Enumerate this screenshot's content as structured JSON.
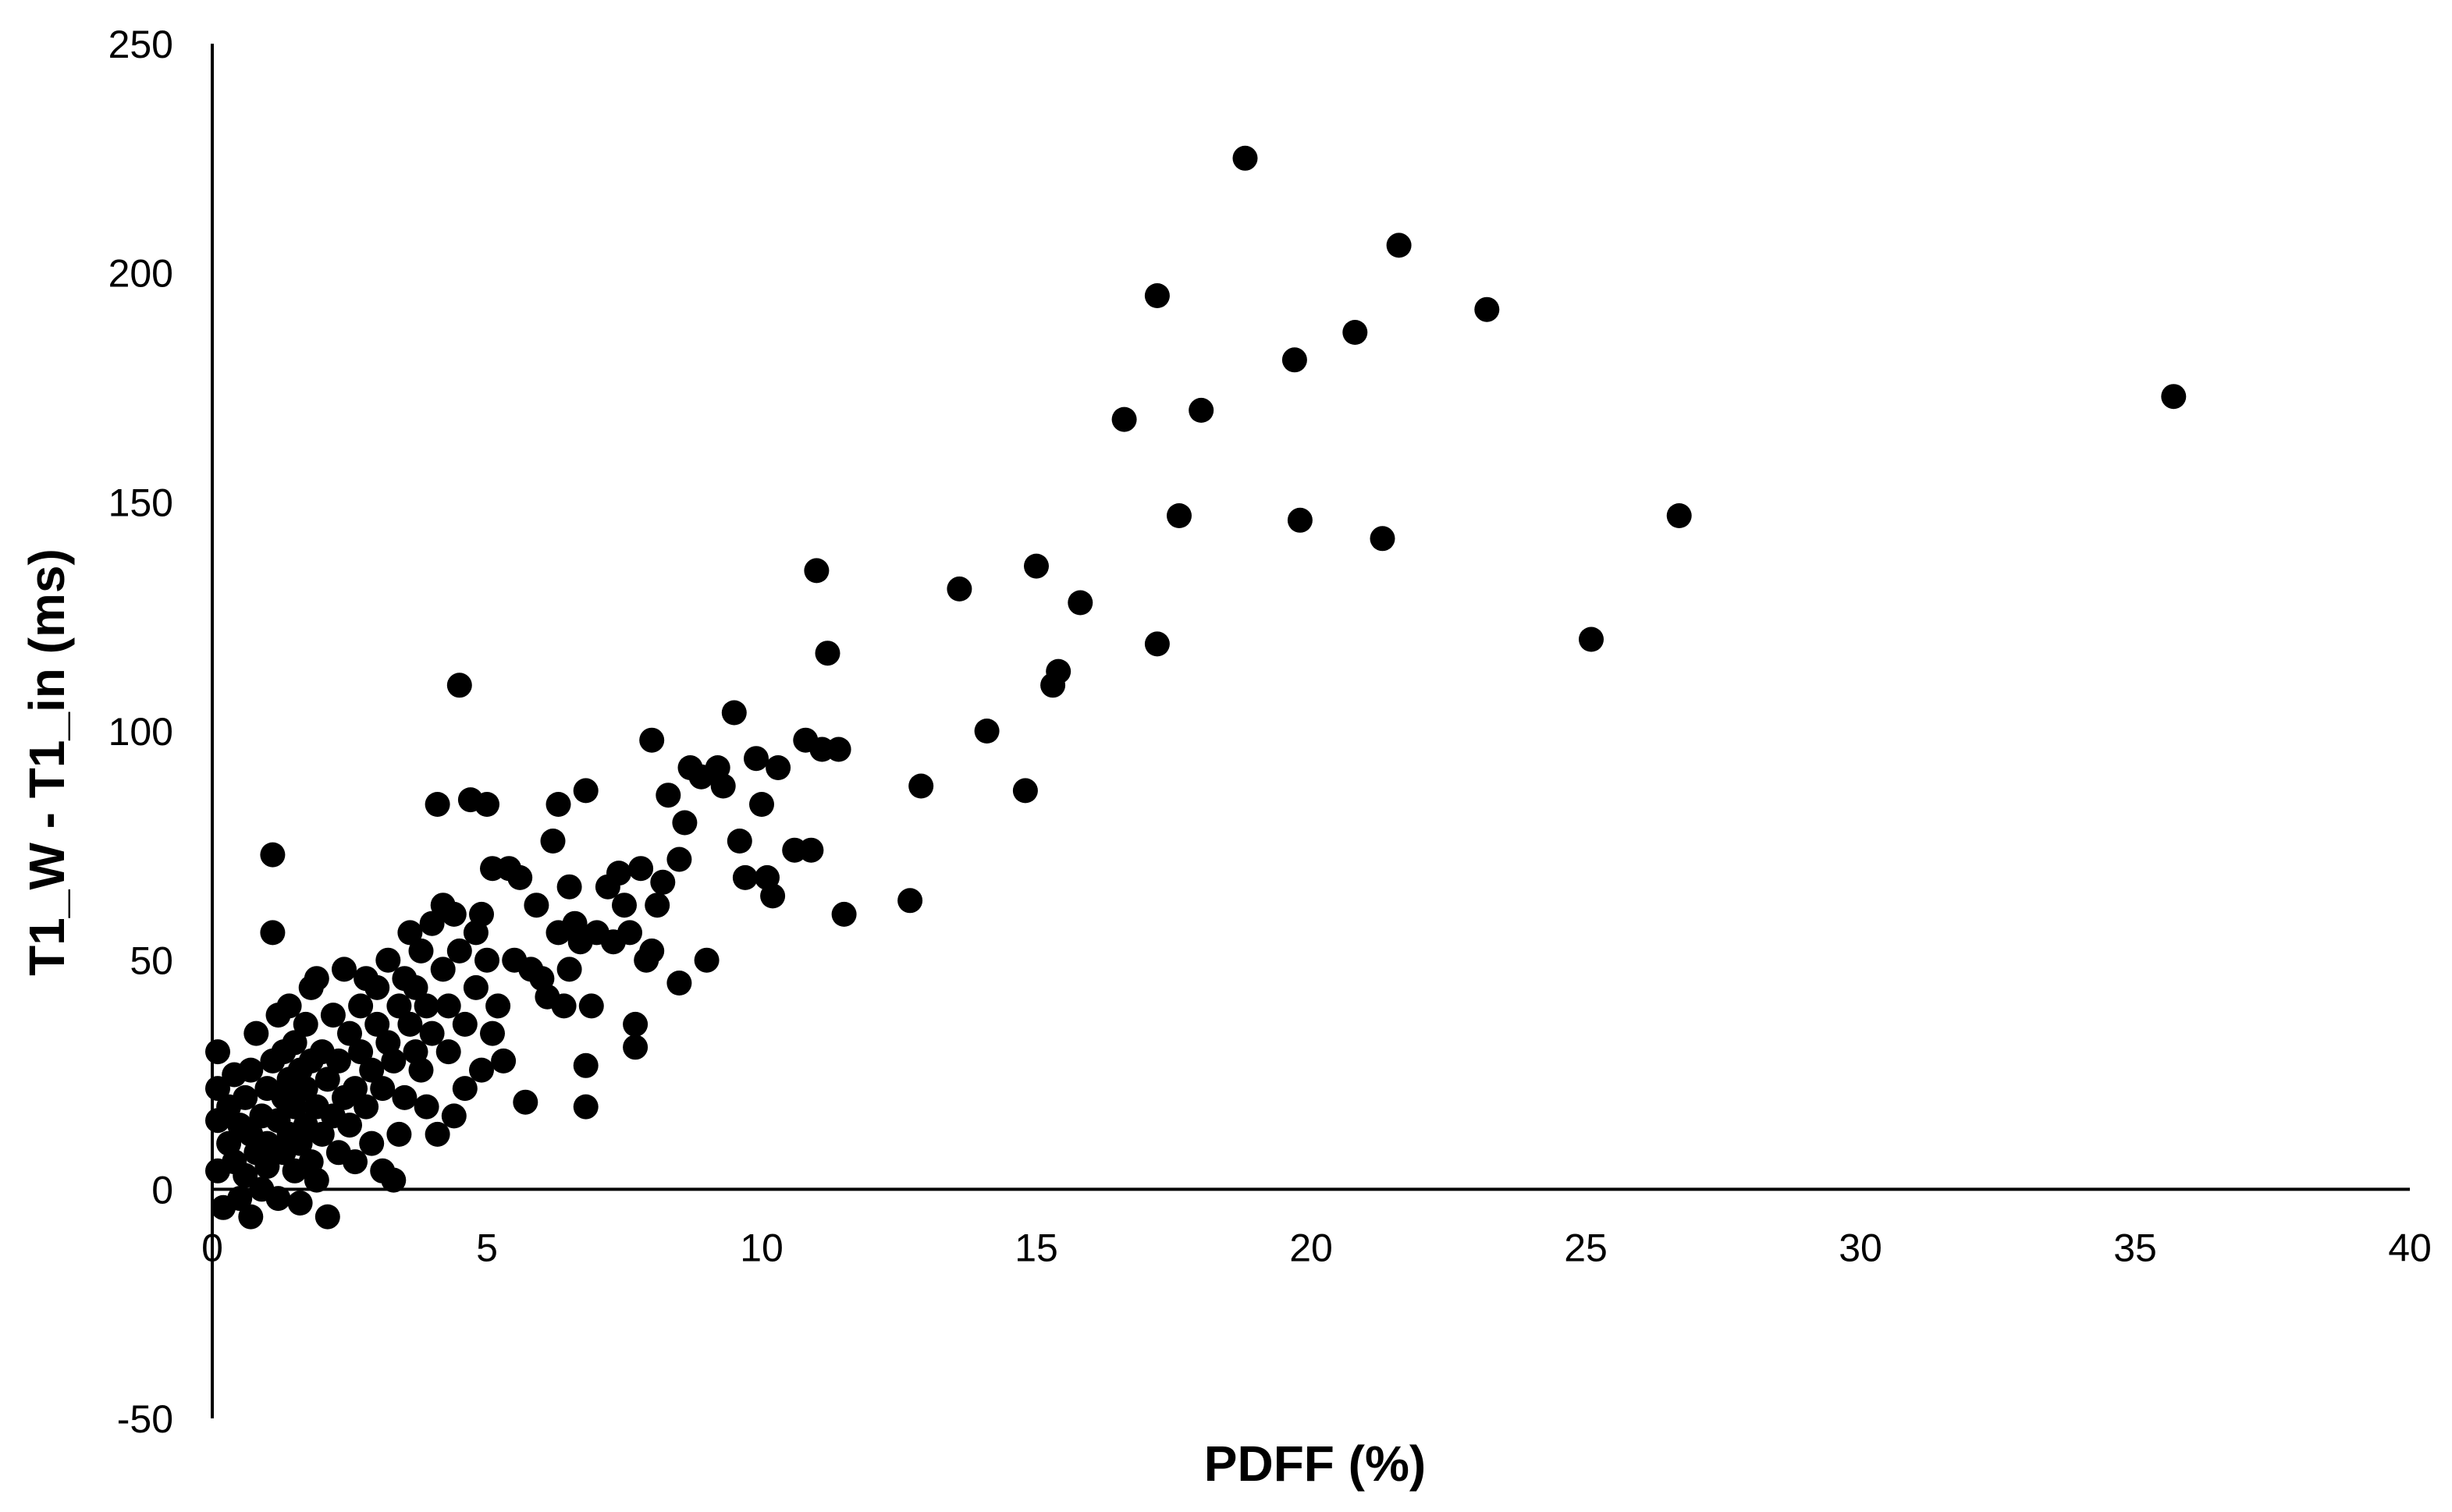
{
  "chart_data": {
    "type": "scatter",
    "title": "",
    "xlabel": "PDFF (%)",
    "ylabel": "T1_W - T1_in (ms)",
    "xlim": [
      0,
      40
    ],
    "ylim": [
      -50,
      250
    ],
    "x_ticks": [
      "0",
      "5",
      "10",
      "15",
      "20",
      "25",
      "30",
      "35",
      "40"
    ],
    "y_ticks": [
      "250",
      "200",
      "150",
      "100",
      "50",
      "0",
      "-50"
    ],
    "grid": false,
    "legend": "none",
    "marker_color": "#000000",
    "series": [
      {
        "points": [
          [
            0.1,
            30
          ],
          [
            0.1,
            22
          ],
          [
            0.1,
            15
          ],
          [
            0.1,
            4
          ],
          [
            0.2,
            -4
          ],
          [
            0.3,
            10
          ],
          [
            0.3,
            18
          ],
          [
            0.4,
            6
          ],
          [
            0.4,
            25
          ],
          [
            0.5,
            -2
          ],
          [
            0.5,
            14
          ],
          [
            0.6,
            20
          ],
          [
            0.6,
            3
          ],
          [
            0.7,
            12
          ],
          [
            0.7,
            26
          ],
          [
            0.7,
            -6
          ],
          [
            0.8,
            8
          ],
          [
            0.8,
            34
          ],
          [
            0.9,
            16
          ],
          [
            0.9,
            0
          ],
          [
            1.0,
            22
          ],
          [
            1.0,
            10
          ],
          [
            1.0,
            5
          ],
          [
            1.1,
            28
          ],
          [
            1.1,
            73
          ],
          [
            1.1,
            56
          ],
          [
            1.2,
            15
          ],
          [
            1.2,
            -2
          ],
          [
            1.2,
            38
          ],
          [
            1.3,
            20
          ],
          [
            1.3,
            8
          ],
          [
            1.3,
            30
          ],
          [
            1.4,
            12
          ],
          [
            1.4,
            24
          ],
          [
            1.4,
            40
          ],
          [
            1.5,
            4
          ],
          [
            1.5,
            18
          ],
          [
            1.5,
            32
          ],
          [
            1.6,
            10
          ],
          [
            1.6,
            26
          ],
          [
            1.6,
            -3
          ],
          [
            1.7,
            14
          ],
          [
            1.7,
            36
          ],
          [
            1.7,
            22
          ],
          [
            1.8,
            6
          ],
          [
            1.8,
            44
          ],
          [
            1.8,
            28
          ],
          [
            1.9,
            18
          ],
          [
            1.9,
            2
          ],
          [
            1.9,
            46
          ],
          [
            2.0,
            12
          ],
          [
            2.0,
            30
          ],
          [
            2.1,
            24
          ],
          [
            2.1,
            -6
          ],
          [
            2.2,
            16
          ],
          [
            2.2,
            38
          ],
          [
            2.3,
            8
          ],
          [
            2.3,
            28
          ],
          [
            2.4,
            20
          ],
          [
            2.4,
            48
          ],
          [
            2.5,
            14
          ],
          [
            2.5,
            34
          ],
          [
            2.6,
            22
          ],
          [
            2.6,
            6
          ],
          [
            2.7,
            40
          ],
          [
            2.7,
            30
          ],
          [
            2.8,
            18
          ],
          [
            2.8,
            46
          ],
          [
            2.9,
            26
          ],
          [
            2.9,
            10
          ],
          [
            3.0,
            36
          ],
          [
            3.0,
            44
          ],
          [
            3.1,
            22
          ],
          [
            3.1,
            4
          ],
          [
            3.2,
            32
          ],
          [
            3.2,
            50
          ],
          [
            3.3,
            2
          ],
          [
            3.3,
            28
          ],
          [
            3.4,
            40
          ],
          [
            3.4,
            12
          ],
          [
            3.5,
            46
          ],
          [
            3.5,
            20
          ],
          [
            3.6,
            36
          ],
          [
            3.6,
            56
          ],
          [
            3.7,
            30
          ],
          [
            3.7,
            44
          ],
          [
            3.8,
            26
          ],
          [
            3.8,
            52
          ],
          [
            3.9,
            18
          ],
          [
            3.9,
            40
          ],
          [
            4.0,
            58
          ],
          [
            4.0,
            34
          ],
          [
            4.1,
            84
          ],
          [
            4.1,
            12
          ],
          [
            4.2,
            48
          ],
          [
            4.2,
            62
          ],
          [
            4.3,
            30
          ],
          [
            4.3,
            40
          ],
          [
            4.4,
            60
          ],
          [
            4.4,
            16
          ],
          [
            4.5,
            110
          ],
          [
            4.5,
            52
          ],
          [
            4.6,
            36
          ],
          [
            4.6,
            22
          ],
          [
            4.7,
            85
          ],
          [
            4.8,
            56
          ],
          [
            4.8,
            44
          ],
          [
            4.9,
            26
          ],
          [
            4.9,
            60
          ],
          [
            5.0,
            50
          ],
          [
            5.0,
            84
          ],
          [
            5.1,
            70
          ],
          [
            5.1,
            34
          ],
          [
            5.2,
            40
          ],
          [
            5.3,
            28
          ],
          [
            5.4,
            70
          ],
          [
            5.5,
            50
          ],
          [
            5.6,
            68
          ],
          [
            5.7,
            19
          ],
          [
            5.8,
            48
          ],
          [
            5.9,
            62
          ],
          [
            6.0,
            46
          ],
          [
            6.1,
            42
          ],
          [
            6.2,
            76
          ],
          [
            6.3,
            84
          ],
          [
            6.3,
            56
          ],
          [
            6.4,
            40
          ],
          [
            6.5,
            48
          ],
          [
            6.5,
            66
          ],
          [
            6.6,
            58
          ],
          [
            6.7,
            54
          ],
          [
            6.8,
            87
          ],
          [
            6.8,
            27
          ],
          [
            6.8,
            18
          ],
          [
            6.9,
            40
          ],
          [
            7.0,
            56
          ],
          [
            7.2,
            66
          ],
          [
            7.3,
            54
          ],
          [
            7.4,
            69
          ],
          [
            7.5,
            62
          ],
          [
            7.6,
            56
          ],
          [
            7.7,
            36
          ],
          [
            7.7,
            31
          ],
          [
            7.8,
            70
          ],
          [
            7.9,
            50
          ],
          [
            8.0,
            98
          ],
          [
            8.0,
            52
          ],
          [
            8.1,
            62
          ],
          [
            8.2,
            67
          ],
          [
            8.3,
            86
          ],
          [
            8.5,
            72
          ],
          [
            8.5,
            45
          ],
          [
            8.6,
            80
          ],
          [
            8.7,
            92
          ],
          [
            8.9,
            90
          ],
          [
            9.0,
            50
          ],
          [
            9.2,
            92
          ],
          [
            9.3,
            88
          ],
          [
            9.5,
            104
          ],
          [
            9.6,
            76
          ],
          [
            9.7,
            68
          ],
          [
            9.9,
            94
          ],
          [
            10.0,
            84
          ],
          [
            10.1,
            68
          ],
          [
            10.2,
            64
          ],
          [
            10.3,
            92
          ],
          [
            10.6,
            74
          ],
          [
            10.8,
            98
          ],
          [
            10.9,
            74
          ],
          [
            11.0,
            135
          ],
          [
            11.1,
            96
          ],
          [
            11.2,
            117
          ],
          [
            11.4,
            96
          ],
          [
            11.5,
            60
          ],
          [
            12.7,
            63
          ],
          [
            12.9,
            88
          ],
          [
            13.6,
            131
          ],
          [
            14.1,
            100
          ],
          [
            14.8,
            87
          ],
          [
            15.0,
            136
          ],
          [
            15.3,
            110
          ],
          [
            15.4,
            113
          ],
          [
            15.8,
            128
          ],
          [
            16.6,
            168
          ],
          [
            17.2,
            195
          ],
          [
            17.2,
            119
          ],
          [
            17.6,
            147
          ],
          [
            18.0,
            170
          ],
          [
            18.8,
            225
          ],
          [
            19.7,
            181
          ],
          [
            19.8,
            146
          ],
          [
            20.8,
            187
          ],
          [
            21.3,
            142
          ],
          [
            21.6,
            206
          ],
          [
            23.2,
            192
          ],
          [
            25.1,
            120
          ],
          [
            26.7,
            147
          ],
          [
            35.7,
            173
          ]
        ]
      }
    ]
  }
}
